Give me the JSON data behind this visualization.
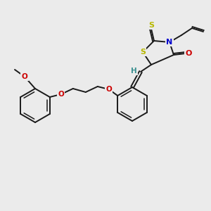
{
  "background_color": "#ebebeb",
  "bond_color": "#1a1a1a",
  "atom_colors": {
    "S": "#b8b800",
    "N": "#0000cc",
    "O": "#cc0000",
    "H": "#3a9090",
    "C": "#1a1a1a"
  },
  "figsize": [
    3.0,
    3.0
  ],
  "dpi": 100
}
